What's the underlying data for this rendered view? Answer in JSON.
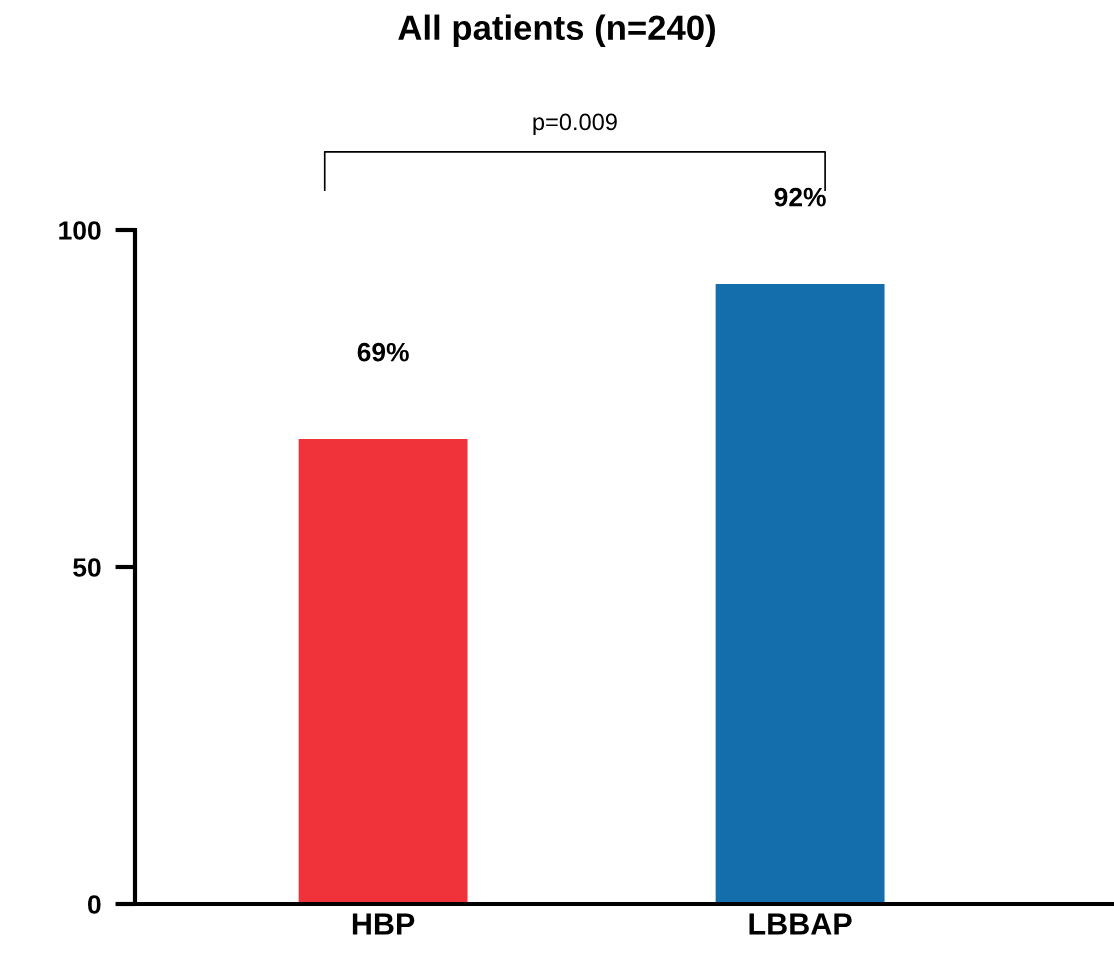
{
  "chart_data": {
    "type": "bar",
    "title": "All patients (n=240)",
    "categories": [
      "HBP",
      "LBBAP"
    ],
    "values": [
      69,
      92
    ],
    "colors": [
      "#f0333a",
      "#136eab"
    ],
    "value_labels": [
      "69%",
      "92%"
    ],
    "ylim": [
      0,
      100
    ],
    "yticks": [
      0,
      50,
      100
    ],
    "annotations": [
      "p=0.009"
    ]
  }
}
